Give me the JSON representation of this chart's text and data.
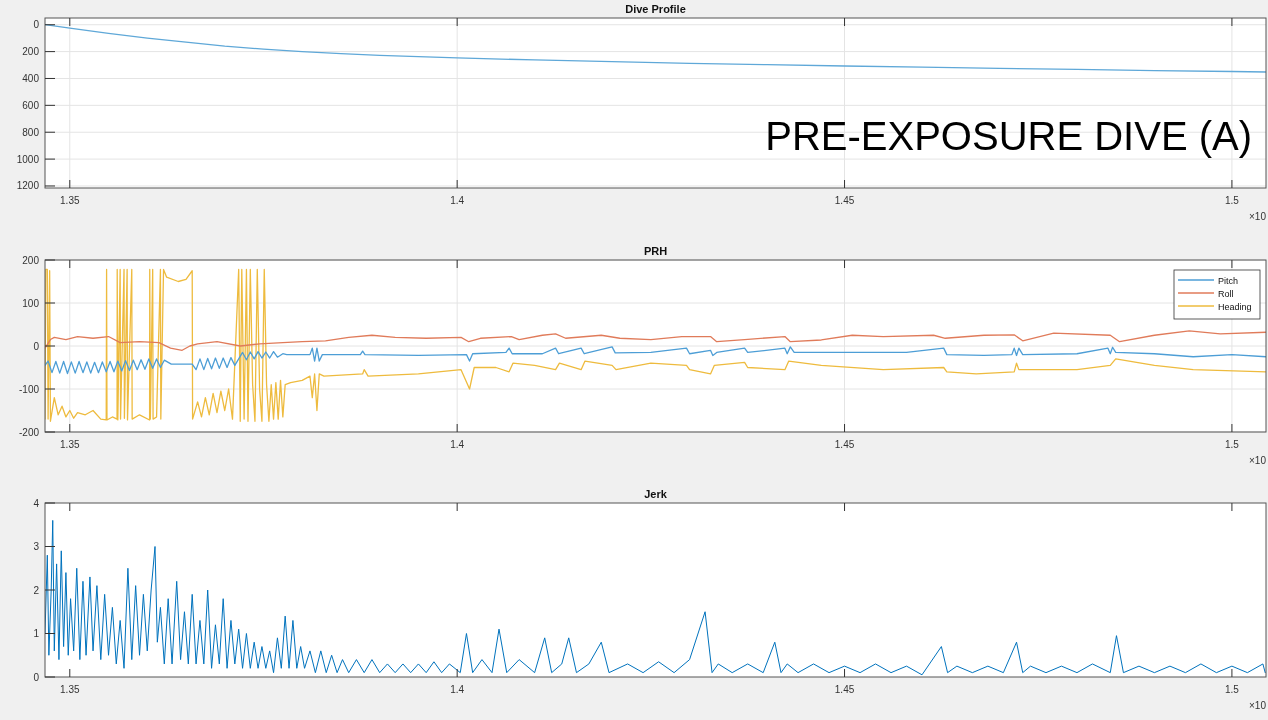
{
  "chart_data": [
    {
      "type": "line",
      "title": "Dive Profile",
      "annotations": [
        "×10",
        "PRE-EXPOSURE DIVE (A)"
      ],
      "xlim": [
        1.3468,
        1.5044
      ],
      "xticks": [
        1.35,
        1.4,
        1.45,
        1.5
      ],
      "ylim": [
        1215,
        -50
      ],
      "yticks": [
        0,
        200,
        400,
        600,
        800,
        1000,
        1200
      ],
      "grid": true,
      "legend": false,
      "series": [
        {
          "color": "#5fa8d8",
          "x": [
            1.3468,
            1.35,
            1.355,
            1.36,
            1.365,
            1.37,
            1.375,
            1.38,
            1.385,
            1.39,
            1.395,
            1.4,
            1.41,
            1.42,
            1.43,
            1.44,
            1.45,
            1.46,
            1.47,
            1.48,
            1.49,
            1.5,
            1.5044
          ],
          "values": [
            0,
            25,
            65,
            100,
            130,
            160,
            182,
            200,
            215,
            228,
            238,
            247,
            262,
            275,
            287,
            297,
            307,
            316,
            325,
            333,
            341,
            348,
            352
          ]
        }
      ]
    },
    {
      "type": "line",
      "title": "PRH",
      "annotations": [
        "×10"
      ],
      "xlim": [
        1.3468,
        1.5044
      ],
      "xticks": [
        1.35,
        1.4,
        1.45,
        1.5
      ],
      "ylim": [
        -200,
        200
      ],
      "yticks": [
        -200,
        -100,
        0,
        100,
        200
      ],
      "grid": true,
      "legend": "top right",
      "series": [
        {
          "name": "Pitch",
          "color": "#4d9ed6",
          "x": [
            1.3468,
            1.3472,
            1.3477,
            1.3482,
            1.3487,
            1.3492,
            1.3497,
            1.3502,
            1.3507,
            1.3512,
            1.3517,
            1.3522,
            1.3527,
            1.3532,
            1.3537,
            1.3542,
            1.3547,
            1.3552,
            1.3557,
            1.3562,
            1.3567,
            1.3572,
            1.3577,
            1.3582,
            1.3587,
            1.3592,
            1.3597,
            1.3602,
            1.3607,
            1.3612,
            1.3617,
            1.3622,
            1.3631,
            1.3658,
            1.3663,
            1.3668,
            1.3673,
            1.3678,
            1.3683,
            1.3688,
            1.3693,
            1.3698,
            1.3703,
            1.3708,
            1.3713,
            1.3718,
            1.3723,
            1.3728,
            1.3733,
            1.3738,
            1.3743,
            1.3748,
            1.3753,
            1.3758,
            1.3763,
            1.3768,
            1.3775,
            1.378,
            1.381,
            1.3813,
            1.3816,
            1.3819,
            1.3822,
            1.3826,
            1.3875,
            1.3878,
            1.3881,
            1.395,
            1.4012,
            1.4016,
            1.402,
            1.4063,
            1.4067,
            1.4071,
            1.411,
            1.4127,
            1.4131,
            1.416,
            1.4164,
            1.42,
            1.4204,
            1.425,
            1.4296,
            1.43,
            1.4327,
            1.433,
            1.4335,
            1.4371,
            1.4375,
            1.4423,
            1.4426,
            1.443,
            1.4435,
            1.45,
            1.458,
            1.4628,
            1.4632,
            1.468,
            1.4716,
            1.4719,
            1.4722,
            1.4725,
            1.473,
            1.48,
            1.484,
            1.4843,
            1.4846,
            1.485,
            1.49,
            1.495,
            1.5,
            1.5044
          ],
          "values": [
            -45,
            -35,
            -62,
            -36,
            -63,
            -36,
            -64,
            -37,
            -63,
            -36,
            -62,
            -37,
            -63,
            -38,
            -62,
            -37,
            -60,
            -36,
            -60,
            -35,
            -58,
            -34,
            -57,
            -33,
            -55,
            -32,
            -54,
            -30,
            -52,
            -30,
            -50,
            -33,
            -42,
            -42,
            -55,
            -30,
            -55,
            -29,
            -53,
            -28,
            -52,
            -28,
            -50,
            -27,
            -45,
            -30,
            -15,
            -32,
            -14,
            -30,
            -13,
            -28,
            -14,
            -28,
            -13,
            -26,
            -18,
            -20,
            -20,
            -5,
            -35,
            -5,
            -35,
            -20,
            -20,
            -12,
            -20,
            -22,
            -20,
            -35,
            -18,
            -15,
            -5,
            -18,
            -18,
            -5,
            -18,
            -5,
            -18,
            -2,
            -16,
            -15,
            -5,
            -18,
            -10,
            -22,
            -15,
            -5,
            -15,
            -5,
            -18,
            -2,
            -15,
            -15,
            -15,
            -5,
            -20,
            -22,
            -20,
            -5,
            -22,
            -5,
            -20,
            -18,
            -5,
            -18,
            -3,
            -15,
            -18,
            -25,
            -20,
            -25
          ]
        },
        {
          "name": "Roll",
          "color": "#e07b5a",
          "x": [
            1.3468,
            1.3475,
            1.348,
            1.3495,
            1.351,
            1.353,
            1.355,
            1.3565,
            1.359,
            1.3615,
            1.363,
            1.3645,
            1.3655,
            1.3665,
            1.369,
            1.372,
            1.3745,
            1.3775,
            1.38,
            1.383,
            1.386,
            1.389,
            1.392,
            1.396,
            1.4005,
            1.4015,
            1.403,
            1.407,
            1.408,
            1.411,
            1.4127,
            1.414,
            1.4186,
            1.421,
            1.425,
            1.429,
            1.4327,
            1.4335,
            1.4371,
            1.4423,
            1.443,
            1.447,
            1.451,
            1.455,
            1.4615,
            1.463,
            1.468,
            1.4719,
            1.473,
            1.477,
            1.4843,
            1.4855,
            1.49,
            1.4945,
            1.4985,
            1.5044
          ],
          "values": [
            -5,
            15,
            20,
            15,
            22,
            18,
            22,
            8,
            10,
            8,
            -5,
            -10,
            0,
            5,
            10,
            0,
            5,
            8,
            10,
            12,
            20,
            25,
            20,
            18,
            20,
            10,
            18,
            22,
            15,
            25,
            28,
            18,
            25,
            18,
            15,
            22,
            22,
            10,
            15,
            22,
            10,
            14,
            25,
            22,
            25,
            18,
            25,
            26,
            12,
            30,
            25,
            10,
            25,
            35,
            28,
            32
          ]
        },
        {
          "name": "Heading",
          "color": "#eebb3e",
          "x": [
            1.3468,
            1.3469,
            1.3471,
            1.3472,
            1.3474,
            1.3475,
            1.348,
            1.3485,
            1.349,
            1.3495,
            1.35,
            1.3505,
            1.351,
            1.352,
            1.353,
            1.354,
            1.3547,
            1.35475,
            1.3548,
            1.3555,
            1.3561,
            1.35612,
            1.3562,
            1.3565,
            1.35655,
            1.357,
            1.35705,
            1.3574,
            1.35745,
            1.358,
            1.35805,
            1.359,
            1.3603,
            1.36032,
            1.3604,
            1.3607,
            1.36075,
            1.3612,
            1.3617,
            1.36175,
            1.3621,
            1.3625,
            1.364,
            1.365,
            1.3658,
            1.36585,
            1.3665,
            1.367,
            1.3675,
            1.368,
            1.3685,
            1.369,
            1.3695,
            1.37,
            1.3705,
            1.371,
            1.3718,
            1.372,
            1.3722,
            1.3725,
            1.3728,
            1.373,
            1.3733,
            1.3736,
            1.3739,
            1.3742,
            1.3745,
            1.3748,
            1.3751,
            1.3754,
            1.3757,
            1.376,
            1.3763,
            1.3766,
            1.3769,
            1.3772,
            1.3775,
            1.3778,
            1.3785,
            1.38,
            1.381,
            1.3813,
            1.3816,
            1.3819,
            1.3822,
            1.3828,
            1.3878,
            1.388,
            1.3885,
            1.395,
            1.4005,
            1.4016,
            1.4022,
            1.405,
            1.4067,
            1.4072,
            1.41,
            1.4127,
            1.4132,
            1.416,
            1.4165,
            1.42,
            1.4205,
            1.425,
            1.4296,
            1.43,
            1.4327,
            1.4332,
            1.4371,
            1.4375,
            1.4423,
            1.4428,
            1.447,
            1.455,
            1.4628,
            1.4632,
            1.467,
            1.4719,
            1.4722,
            1.4725,
            1.48,
            1.4843,
            1.485,
            1.49,
            1.495,
            1.5044
          ],
          "values": [
            -170,
            178,
            178,
            -170,
            175,
            -175,
            -120,
            -160,
            -140,
            -165,
            -150,
            -168,
            -155,
            -160,
            -150,
            -170,
            -172,
            178,
            -172,
            -165,
            -170,
            178,
            -172,
            178,
            -170,
            178,
            -168,
            178,
            -172,
            178,
            -170,
            -160,
            -172,
            178,
            -170,
            178,
            -170,
            -165,
            178,
            -170,
            178,
            160,
            150,
            155,
            175,
            -170,
            -130,
            -165,
            -120,
            -160,
            -110,
            -155,
            -105,
            -150,
            -100,
            -170,
            178,
            -175,
            178,
            -170,
            178,
            -175,
            178,
            -90,
            -175,
            178,
            -100,
            -175,
            178,
            -90,
            -175,
            -90,
            -170,
            -85,
            -170,
            -80,
            -165,
            -90,
            -85,
            -80,
            -70,
            -120,
            -65,
            -150,
            -65,
            -70,
            -65,
            -55,
            -70,
            -65,
            -55,
            -100,
            -50,
            -50,
            -60,
            -40,
            -45,
            -55,
            -40,
            -55,
            -35,
            -45,
            -55,
            -40,
            -45,
            -55,
            -65,
            -45,
            -38,
            -50,
            -55,
            -35,
            -45,
            -55,
            -50,
            -60,
            -65,
            -60,
            -40,
            -55,
            -55,
            -45,
            -30,
            -45,
            -55,
            -60
          ]
        }
      ]
    },
    {
      "type": "line",
      "title": "Jerk",
      "annotations": [
        "×10"
      ],
      "xlim": [
        1.3468,
        1.5044
      ],
      "xticks": [
        1.35,
        1.4,
        1.45,
        1.5
      ],
      "ylim": [
        0,
        4
      ],
      "yticks": [
        0,
        1,
        2,
        3,
        4
      ],
      "grid": false,
      "legend": false,
      "series": [
        {
          "color": "#0072bd",
          "x": [
            1.3468,
            1.3471,
            1.3473,
            1.3476,
            1.3478,
            1.348,
            1.3483,
            1.3486,
            1.3489,
            1.3492,
            1.3495,
            1.3498,
            1.3501,
            1.3505,
            1.3509,
            1.3513,
            1.3517,
            1.3521,
            1.3526,
            1.353,
            1.3535,
            1.354,
            1.3545,
            1.355,
            1.3555,
            1.356,
            1.3565,
            1.357,
            1.3575,
            1.358,
            1.3585,
            1.359,
            1.3595,
            1.36,
            1.3605,
            1.361,
            1.3613,
            1.3617,
            1.3622,
            1.3627,
            1.3632,
            1.3638,
            1.3643,
            1.3648,
            1.3653,
            1.3658,
            1.3663,
            1.3668,
            1.3673,
            1.3678,
            1.3683,
            1.3688,
            1.3693,
            1.3698,
            1.3703,
            1.3708,
            1.3713,
            1.3718,
            1.3723,
            1.3728,
            1.3733,
            1.3738,
            1.3743,
            1.3748,
            1.3753,
            1.3758,
            1.3763,
            1.3768,
            1.3773,
            1.3778,
            1.3783,
            1.3788,
            1.3793,
            1.3798,
            1.3803,
            1.381,
            1.3817,
            1.3824,
            1.3831,
            1.3838,
            1.3845,
            1.3852,
            1.386,
            1.387,
            1.388,
            1.389,
            1.39,
            1.391,
            1.392,
            1.393,
            1.394,
            1.395,
            1.396,
            1.397,
            1.398,
            1.399,
            1.4004,
            1.4012,
            1.402,
            1.4032,
            1.4045,
            1.4054,
            1.4064,
            1.408,
            1.41,
            1.4113,
            1.4122,
            1.4135,
            1.4144,
            1.4154,
            1.417,
            1.4186,
            1.4196,
            1.422,
            1.424,
            1.426,
            1.428,
            1.43,
            1.432,
            1.4329,
            1.4337,
            1.4355,
            1.4375,
            1.4395,
            1.441,
            1.4418,
            1.4426,
            1.444,
            1.446,
            1.448,
            1.45,
            1.452,
            1.454,
            1.456,
            1.458,
            1.46,
            1.4625,
            1.4633,
            1.4645,
            1.4665,
            1.4685,
            1.4705,
            1.4722,
            1.473,
            1.474,
            1.476,
            1.478,
            1.48,
            1.482,
            1.4843,
            1.4851,
            1.486,
            1.488,
            1.49,
            1.492,
            1.494,
            1.496,
            1.498,
            1.5,
            1.502,
            1.504,
            1.5043
          ],
          "values": [
            1,
            2.8,
            0.5,
            2,
            3.6,
            0.6,
            2.6,
            0.4,
            2.9,
            0.7,
            2.4,
            0.5,
            1.8,
            0.6,
            2.5,
            0.4,
            2.2,
            0.5,
            2.3,
            0.6,
            2.1,
            0.4,
            1.9,
            0.5,
            1.6,
            0.3,
            1.3,
            0.2,
            2.5,
            0.4,
            2.1,
            0.5,
            1.9,
            0.6,
            2,
            3,
            0.8,
            1.6,
            0.3,
            1.8,
            0.3,
            2.2,
            0.4,
            1.5,
            0.3,
            1.9,
            0.3,
            1.3,
            0.3,
            2,
            0.2,
            1.2,
            0.3,
            1.8,
            0.2,
            1.3,
            0.3,
            1.1,
            0.2,
            1,
            0.2,
            0.8,
            0.2,
            0.7,
            0.2,
            0.6,
            0.1,
            0.9,
            0.2,
            1.4,
            0.2,
            1.3,
            0.2,
            0.7,
            0.2,
            0.6,
            0.1,
            0.6,
            0.1,
            0.5,
            0.1,
            0.4,
            0.1,
            0.4,
            0.1,
            0.4,
            0.1,
            0.3,
            0.1,
            0.3,
            0.1,
            0.3,
            0.1,
            0.35,
            0.1,
            0.3,
            0.1,
            1,
            0.1,
            0.4,
            0.1,
            1.1,
            0.1,
            0.4,
            0.1,
            0.9,
            0.1,
            0.3,
            0.9,
            0.1,
            0.3,
            0.8,
            0.1,
            0.3,
            0.1,
            0.35,
            0.1,
            0.4,
            1.5,
            0.1,
            0.3,
            0.1,
            0.3,
            0.1,
            0.8,
            0.1,
            0.3,
            0.1,
            0.3,
            0.1,
            0.25,
            0.1,
            0.3,
            0.1,
            0.25,
            0.05,
            0.7,
            0.1,
            0.25,
            0.1,
            0.25,
            0.1,
            0.8,
            0.1,
            0.25,
            0.1,
            0.25,
            0.1,
            0.3,
            0.1,
            0.95,
            0.1,
            0.25,
            0.1,
            0.25,
            0.1,
            0.3,
            0.1,
            0.25,
            0.1,
            0.3,
            0.1
          ]
        }
      ]
    }
  ]
}
